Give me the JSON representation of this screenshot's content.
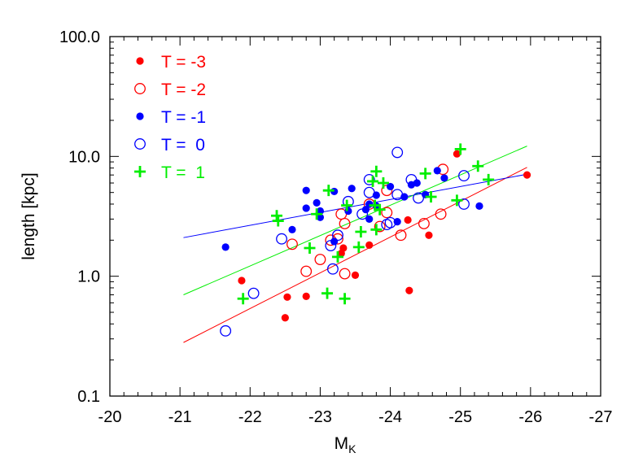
{
  "chart_data": {
    "type": "scatter",
    "xlabel_main": "M",
    "xlabel_sub": "K",
    "ylabel": "length [kpc]",
    "xlim": [
      -20,
      -27
    ],
    "ylim": [
      0.1,
      100
    ],
    "y_scale": "log",
    "x_ticks": [
      -20,
      -21,
      -22,
      -23,
      -24,
      -25,
      -26,
      -27
    ],
    "x_tick_labels": [
      "-20",
      "-21",
      "-22",
      "-23",
      "-24",
      "-25",
      "-26",
      "-27"
    ],
    "y_ticks": [
      0.1,
      1,
      10,
      100
    ],
    "y_tick_labels": [
      "0.1",
      "1.0",
      "10.0",
      "100.0"
    ],
    "grid": false,
    "legend_position": "top-left",
    "series": [
      {
        "name": "T = -3",
        "marker": "filled-circle",
        "color": "#ff0000",
        "points": [
          [
            -21.88,
            0.92
          ],
          [
            -22.5,
            0.45
          ],
          [
            -22.53,
            0.67
          ],
          [
            -22.8,
            0.68
          ],
          [
            -23.3,
            1.55
          ],
          [
            -23.33,
            1.72
          ],
          [
            -23.5,
            1.02
          ],
          [
            -23.7,
            1.82
          ],
          [
            -24.25,
            2.95
          ],
          [
            -24.27,
            0.76
          ],
          [
            -24.55,
            2.2
          ],
          [
            -24.95,
            10.5
          ],
          [
            -25.95,
            7.0
          ]
        ],
        "fit": [
          [
            -21.05,
            0.28
          ],
          [
            -25.95,
            8.1
          ]
        ]
      },
      {
        "name": "T = -2",
        "marker": "open-circle",
        "color": "#ff0000",
        "points": [
          [
            -22.6,
            1.85
          ],
          [
            -22.8,
            1.1
          ],
          [
            -23.0,
            1.38
          ],
          [
            -23.15,
            2.0
          ],
          [
            -23.25,
            2.05
          ],
          [
            -23.3,
            3.3
          ],
          [
            -23.35,
            2.75
          ],
          [
            -23.35,
            1.05
          ],
          [
            -23.7,
            4.0
          ],
          [
            -23.85,
            2.6
          ],
          [
            -23.95,
            5.2
          ],
          [
            -23.95,
            3.4
          ],
          [
            -24.15,
            2.2
          ],
          [
            -24.48,
            2.75
          ],
          [
            -24.72,
            3.3
          ],
          [
            -24.75,
            7.8
          ]
        ],
        "fit": null
      },
      {
        "name": "T = -1",
        "marker": "filled-circle",
        "color": "#0000ff",
        "points": [
          [
            -21.65,
            1.75
          ],
          [
            -22.6,
            2.45
          ],
          [
            -22.8,
            5.2
          ],
          [
            -22.8,
            3.7
          ],
          [
            -22.95,
            4.1
          ],
          [
            -23.0,
            3.1
          ],
          [
            -23.0,
            3.5
          ],
          [
            -23.2,
            5.1
          ],
          [
            -23.2,
            1.95
          ],
          [
            -23.4,
            3.5
          ],
          [
            -23.45,
            5.4
          ],
          [
            -23.65,
            3.6
          ],
          [
            -23.7,
            3.0
          ],
          [
            -23.7,
            4.0
          ],
          [
            -23.8,
            4.75
          ],
          [
            -23.8,
            3.85
          ],
          [
            -24.0,
            5.6
          ],
          [
            -24.1,
            2.85
          ],
          [
            -24.2,
            4.6
          ],
          [
            -24.3,
            5.8
          ],
          [
            -24.38,
            6.0
          ],
          [
            -24.5,
            4.8
          ],
          [
            -24.67,
            7.6
          ],
          [
            -24.77,
            6.6
          ],
          [
            -25.27,
            3.85
          ]
        ],
        "fit": [
          [
            -21.05,
            2.1
          ],
          [
            -25.95,
            7.1
          ]
        ]
      },
      {
        "name": "T =  0",
        "marker": "open-circle",
        "color": "#0000ff",
        "points": [
          [
            -21.65,
            0.35
          ],
          [
            -22.05,
            0.72
          ],
          [
            -22.45,
            2.05
          ],
          [
            -23.15,
            1.8
          ],
          [
            -23.18,
            1.15
          ],
          [
            -23.25,
            2.2
          ],
          [
            -23.4,
            4.2
          ],
          [
            -23.6,
            3.3
          ],
          [
            -23.7,
            5.0
          ],
          [
            -23.7,
            6.4
          ],
          [
            -23.95,
            2.7
          ],
          [
            -24.0,
            2.8
          ],
          [
            -24.1,
            4.8
          ],
          [
            -24.1,
            10.8
          ],
          [
            -24.3,
            6.4
          ],
          [
            -24.4,
            4.5
          ],
          [
            -25.05,
            6.9
          ],
          [
            -25.05,
            4.0
          ]
        ],
        "fit": null
      },
      {
        "name": "T =  1",
        "marker": "plus",
        "color": "#00ee00",
        "points": [
          [
            -21.9,
            0.65
          ],
          [
            -22.38,
            3.2
          ],
          [
            -22.4,
            2.9
          ],
          [
            -22.85,
            1.72
          ],
          [
            -22.95,
            3.3
          ],
          [
            -23.1,
            0.72
          ],
          [
            -23.12,
            5.2
          ],
          [
            -23.25,
            1.45
          ],
          [
            -23.35,
            0.65
          ],
          [
            -23.38,
            3.9
          ],
          [
            -23.55,
            1.75
          ],
          [
            -23.58,
            2.35
          ],
          [
            -23.75,
            6.2
          ],
          [
            -23.78,
            3.9
          ],
          [
            -23.8,
            7.5
          ],
          [
            -23.8,
            2.45
          ],
          [
            -23.85,
            3.6
          ],
          [
            -23.9,
            6.0
          ],
          [
            -24.5,
            7.2
          ],
          [
            -24.58,
            4.6
          ],
          [
            -24.95,
            4.3
          ],
          [
            -25.0,
            11.5
          ],
          [
            -25.25,
            8.3
          ],
          [
            -25.4,
            6.4
          ]
        ],
        "fit": [
          [
            -21.05,
            0.7
          ],
          [
            -25.95,
            12.2
          ]
        ]
      }
    ]
  }
}
